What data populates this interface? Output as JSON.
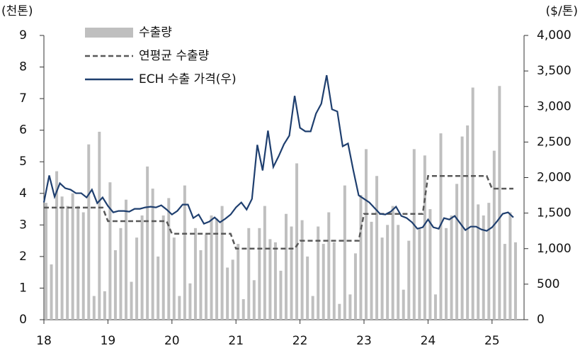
{
  "chart_data": {
    "type": "combo",
    "y_label": "(천톤)",
    "y2_label": "($/톤)",
    "categories": [
      "18",
      null,
      null,
      null,
      null,
      null,
      null,
      null,
      null,
      null,
      null,
      null,
      "19",
      null,
      null,
      null,
      null,
      null,
      null,
      null,
      null,
      null,
      null,
      null,
      "20",
      null,
      null,
      null,
      null,
      null,
      null,
      null,
      null,
      null,
      null,
      null,
      "21",
      null,
      null,
      null,
      null,
      null,
      null,
      null,
      null,
      null,
      null,
      null,
      "22",
      null,
      null,
      null,
      null,
      null,
      null,
      null,
      null,
      null,
      null,
      null,
      "23",
      null,
      null,
      null,
      null,
      null,
      null,
      null,
      null,
      null,
      null,
      null,
      "24",
      null,
      null,
      null,
      null,
      null,
      null,
      null,
      null,
      null,
      null,
      null,
      "25",
      null,
      null,
      null,
      null
    ],
    "ylim": [
      0,
      9
    ],
    "yticks": [
      0,
      1,
      2,
      3,
      4,
      5,
      6,
      7,
      8,
      9
    ],
    "y2lim": [
      0,
      4000
    ],
    "y2ticks": [
      0,
      500,
      {
        "value": 1000,
        "label": "1,000"
      },
      {
        "value": 1500,
        "label": "1,500"
      },
      {
        "value": 2000,
        "label": "2,000"
      },
      {
        "value": 2500,
        "label": "2,500"
      },
      {
        "value": 3000,
        "label": "3,000"
      },
      {
        "value": 3500,
        "label": "3,500"
      },
      {
        "value": 4000,
        "label": "4,000"
      }
    ],
    "series": [
      {
        "name": "수출량",
        "type": "bar",
        "color": "#bfbfbf",
        "values": [
          3.7,
          1.75,
          4.7,
          3.9,
          3.6,
          4.0,
          3.6,
          3.4,
          5.55,
          0.75,
          5.95,
          0.9,
          4.35,
          2.2,
          2.9,
          3.8,
          1.2,
          2.6,
          3.3,
          4.85,
          4.15,
          2.0,
          3.3,
          3.85,
          2.6,
          0.75,
          4.25,
          1.15,
          2.9,
          2.2,
          2.7,
          3.3,
          3.2,
          3.6,
          1.65,
          1.9,
          2.4,
          0.65,
          2.9,
          1.25,
          2.9,
          3.6,
          2.55,
          2.45,
          1.55,
          3.35,
          2.95,
          4.95,
          3.15,
          2.0,
          0.75,
          2.95,
          2.4,
          3.4,
          2.45,
          0.5,
          4.25,
          0.8,
          2.1,
          3.95,
          5.4,
          3.1,
          4.55,
          2.6,
          3.0,
          3.6,
          3.0,
          0.95,
          2.5,
          5.4,
          2.9,
          5.2,
          3.5,
          0.8,
          5.9,
          2.9,
          3.3,
          4.3,
          5.8,
          6.15,
          7.35,
          3.65,
          3.3,
          3.7,
          5.35,
          7.4,
          2.4,
          3.4,
          2.45
        ]
      },
      {
        "name": "연평균 수출량",
        "type": "line",
        "line_style": "dashed",
        "color": "#595959",
        "values": [
          3.55,
          3.55,
          3.55,
          3.55,
          3.55,
          3.55,
          3.55,
          3.55,
          3.55,
          3.55,
          3.55,
          3.55,
          3.12,
          3.12,
          3.12,
          3.12,
          3.12,
          3.12,
          3.12,
          3.12,
          3.12,
          3.12,
          3.12,
          3.12,
          2.72,
          2.72,
          2.72,
          2.72,
          2.72,
          2.72,
          2.72,
          2.72,
          2.72,
          2.72,
          2.72,
          2.72,
          2.25,
          2.25,
          2.25,
          2.25,
          2.25,
          2.25,
          2.25,
          2.25,
          2.25,
          2.25,
          2.25,
          2.25,
          2.5,
          2.5,
          2.5,
          2.5,
          2.5,
          2.5,
          2.5,
          2.5,
          2.5,
          2.5,
          2.5,
          2.5,
          3.35,
          3.35,
          3.35,
          3.35,
          3.35,
          3.35,
          3.35,
          3.35,
          3.35,
          3.35,
          3.35,
          3.35,
          4.55,
          4.55,
          4.55,
          4.55,
          4.55,
          4.55,
          4.55,
          4.55,
          4.55,
          4.55,
          4.55,
          4.55,
          4.15,
          4.15,
          4.15,
          4.15,
          4.15
        ]
      },
      {
        "name": "ECH 수출 가격(우)",
        "type": "line",
        "line_style": "solid",
        "axis": "y2",
        "color": "#1f3f6f",
        "values": [
          1650,
          2030,
          1730,
          1920,
          1850,
          1830,
          1780,
          1780,
          1720,
          1830,
          1640,
          1720,
          1600,
          1510,
          1530,
          1530,
          1520,
          1560,
          1560,
          1580,
          1590,
          1580,
          1610,
          1550,
          1480,
          1530,
          1620,
          1620,
          1430,
          1480,
          1350,
          1380,
          1440,
          1370,
          1420,
          1480,
          1580,
          1650,
          1550,
          1700,
          2460,
          2100,
          2660,
          2150,
          2300,
          2470,
          2590,
          3150,
          2700,
          2650,
          2650,
          2900,
          3040,
          3440,
          2960,
          2930,
          2440,
          2480,
          2100,
          1750,
          1700,
          1650,
          1570,
          1490,
          1480,
          1520,
          1590,
          1460,
          1430,
          1370,
          1280,
          1300,
          1410,
          1300,
          1280,
          1430,
          1410,
          1460,
          1360,
          1260,
          1310,
          1310,
          1270,
          1250,
          1300,
          1390,
          1490,
          1510,
          1440
        ]
      }
    ]
  }
}
